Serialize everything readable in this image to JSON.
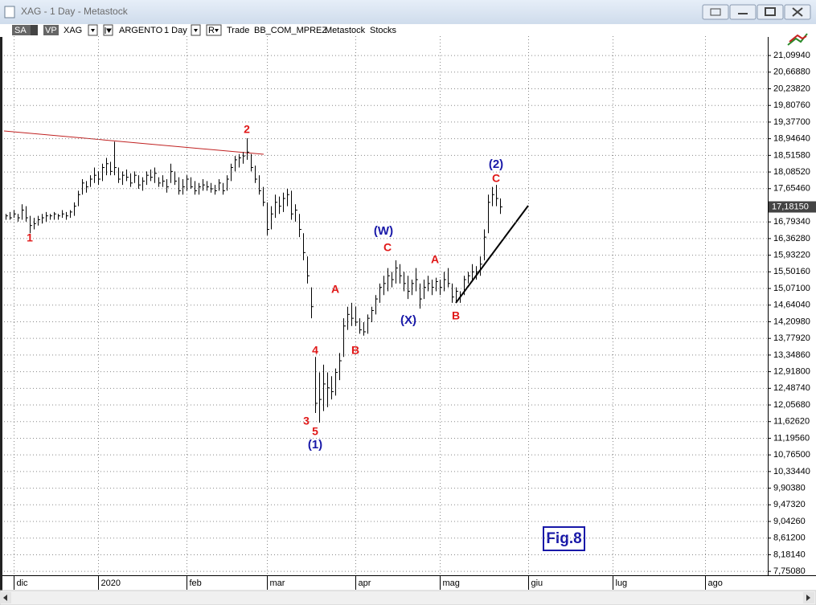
{
  "window": {
    "title": "XAG - 1 Day - Metastock"
  },
  "toolbar": [
    "SA",
    "VP",
    "XAG",
    "ARGENTO",
    "1 Day",
    "R",
    "Trade",
    "BB_COM_MPREZ",
    "Metastock",
    "Stocks"
  ],
  "chart_data": {
    "type": "ohlc",
    "categories": [
      null,
      null,
      "dic",
      null,
      null,
      null,
      null,
      null,
      null,
      null,
      null,
      null,
      null,
      null,
      null,
      null,
      null,
      null,
      null,
      null,
      null,
      null,
      null,
      "2020",
      null,
      null,
      null,
      null,
      null,
      null,
      null,
      null,
      null,
      null,
      null,
      null,
      null,
      null,
      null,
      null,
      null,
      null,
      null,
      null,
      null,
      "feb",
      null,
      null,
      null,
      null,
      null,
      null,
      null,
      null,
      null,
      null,
      null,
      null,
      null,
      null,
      null,
      null,
      null,
      null,
      null,
      "mar",
      null,
      null,
      null,
      null,
      null,
      null,
      null,
      null,
      null,
      null,
      null,
      null,
      null,
      null,
      null,
      null,
      null,
      null,
      null,
      null,
      null,
      "apr",
      null,
      null,
      null,
      null,
      null,
      null,
      null,
      null,
      null,
      null,
      null,
      null,
      null,
      null,
      null,
      null,
      null,
      null,
      null,
      null,
      "mag",
      null,
      null,
      null,
      null,
      null,
      null,
      null,
      null,
      null,
      null,
      null,
      null,
      null,
      null,
      null,
      null,
      null,
      null,
      null,
      null,
      null,
      "giu",
      null,
      null,
      null,
      null,
      null,
      null,
      null,
      null,
      null,
      null,
      null,
      null,
      null,
      null,
      null,
      null,
      null,
      null,
      null,
      null,
      "lug",
      null,
      null,
      null,
      null,
      null,
      null,
      null,
      null,
      null,
      null,
      null,
      null,
      null,
      null,
      null,
      null,
      null,
      null,
      null,
      null,
      null,
      null,
      "ago",
      null,
      null,
      null,
      null,
      null,
      null,
      null,
      null,
      null,
      null,
      null,
      null,
      null,
      null,
      null
    ],
    "series": [
      {
        "color": "#000000",
        "high": [
          17.0,
          17.05,
          17.1,
          17.0,
          17.25,
          17.2,
          16.95,
          16.9,
          16.95,
          17.0,
          17.05,
          17.0,
          17.05,
          17.0,
          17.1,
          17.05,
          17.1,
          17.3,
          17.6,
          17.9,
          17.85,
          18.0,
          18.2,
          18.1,
          18.3,
          18.45,
          18.35,
          18.87,
          18.2,
          18.1,
          18.15,
          18.05,
          18.1,
          18.0,
          17.95,
          18.1,
          18.15,
          18.2,
          17.95,
          18.0,
          17.9,
          18.3,
          18.1,
          17.95,
          17.9,
          18.0,
          17.95,
          17.85,
          17.8,
          17.9,
          17.85,
          17.8,
          17.75,
          17.9,
          17.8,
          18.0,
          18.3,
          18.5,
          18.55,
          18.6,
          18.96,
          18.55,
          18.25,
          18.0,
          17.7,
          17.3,
          17.2,
          17.5,
          17.45,
          17.55,
          17.65,
          17.6,
          17.25,
          17.0,
          16.5,
          15.9,
          15.1,
          13.3,
          12.9,
          13.1,
          12.9,
          12.8,
          13.0,
          13.4,
          14.3,
          14.6,
          14.7,
          14.6,
          14.3,
          14.2,
          14.4,
          14.6,
          14.9,
          15.2,
          15.4,
          15.6,
          15.5,
          15.8,
          15.7,
          15.5,
          15.4,
          15.3,
          15.6,
          15.2,
          15.3,
          15.4,
          15.3,
          15.35,
          15.3,
          15.5,
          15.6,
          15.2,
          15.1,
          15.0,
          15.4,
          15.5,
          15.7,
          15.65,
          15.9,
          16.6,
          17.5,
          17.7,
          17.75,
          17.4,
          null,
          null,
          null,
          null,
          null,
          null,
          null,
          null,
          null,
          null,
          null,
          null,
          null,
          null,
          null,
          null,
          null,
          null,
          null,
          null,
          null,
          null,
          null,
          null,
          null,
          null,
          null,
          null,
          null,
          null,
          null,
          null,
          null,
          null,
          null,
          null,
          null,
          null,
          null,
          null,
          null,
          null,
          null,
          null,
          null,
          null,
          null,
          null,
          null,
          null,
          null,
          null,
          null,
          null,
          null,
          null,
          null,
          null,
          null,
          null,
          null,
          null,
          null,
          null,
          null,
          null
        ],
        "low": [
          16.85,
          16.85,
          16.9,
          16.8,
          16.85,
          16.8,
          16.5,
          16.6,
          16.7,
          16.75,
          16.8,
          16.85,
          16.85,
          16.85,
          16.9,
          16.85,
          16.9,
          16.95,
          17.2,
          17.5,
          17.55,
          17.7,
          17.8,
          17.75,
          17.85,
          18.0,
          18.0,
          18.0,
          17.8,
          17.75,
          17.85,
          17.7,
          17.8,
          17.65,
          17.6,
          17.75,
          17.85,
          17.8,
          17.7,
          17.7,
          17.55,
          17.8,
          17.75,
          17.5,
          17.5,
          17.6,
          17.65,
          17.5,
          17.5,
          17.6,
          17.6,
          17.55,
          17.5,
          17.6,
          17.5,
          17.6,
          17.85,
          18.1,
          18.2,
          18.3,
          18.4,
          18.1,
          17.8,
          17.5,
          17.2,
          16.45,
          16.6,
          16.9,
          17.0,
          17.05,
          17.2,
          16.85,
          16.8,
          16.4,
          15.8,
          15.2,
          14.3,
          11.85,
          11.6,
          11.9,
          12.0,
          12.2,
          12.3,
          12.7,
          13.3,
          14.0,
          14.1,
          14.1,
          13.9,
          13.85,
          13.9,
          14.2,
          14.4,
          14.7,
          14.9,
          15.0,
          15.1,
          15.2,
          15.2,
          15.0,
          14.8,
          14.9,
          15.0,
          14.55,
          14.8,
          15.0,
          14.9,
          15.0,
          14.9,
          15.0,
          15.1,
          14.7,
          14.7,
          14.7,
          14.9,
          15.2,
          15.3,
          15.3,
          15.4,
          15.8,
          16.5,
          17.2,
          17.2,
          17.0,
          null,
          null,
          null,
          null,
          null,
          null,
          null,
          null,
          null,
          null,
          null,
          null,
          null,
          null,
          null,
          null,
          null,
          null,
          null,
          null,
          null,
          null,
          null,
          null,
          null,
          null,
          null,
          null,
          null,
          null,
          null,
          null,
          null,
          null,
          null,
          null,
          null,
          null,
          null,
          null,
          null,
          null,
          null,
          null,
          null,
          null,
          null,
          null,
          null,
          null,
          null,
          null,
          null,
          null,
          null,
          null,
          null,
          null,
          null,
          null,
          null,
          null,
          null,
          null,
          null,
          null
        ],
        "close": [
          16.95,
          16.9,
          17.0,
          16.9,
          17.1,
          16.9,
          16.7,
          16.75,
          16.85,
          16.9,
          16.95,
          16.95,
          17.0,
          16.95,
          17.0,
          16.95,
          17.05,
          17.2,
          17.5,
          17.8,
          17.7,
          17.9,
          18.0,
          17.9,
          18.2,
          18.3,
          18.1,
          18.2,
          17.9,
          18.0,
          17.95,
          17.8,
          18.0,
          17.75,
          17.85,
          18.0,
          17.95,
          18.05,
          17.8,
          17.85,
          17.7,
          18.1,
          17.85,
          17.6,
          17.7,
          17.9,
          17.7,
          17.6,
          17.7,
          17.75,
          17.7,
          17.65,
          17.6,
          17.8,
          17.6,
          17.9,
          18.2,
          18.4,
          18.45,
          18.5,
          18.6,
          18.2,
          17.9,
          17.6,
          17.3,
          16.6,
          17.0,
          17.3,
          17.2,
          17.4,
          17.5,
          17.0,
          17.1,
          16.6,
          16.0,
          15.4,
          14.6,
          12.1,
          12.2,
          12.6,
          12.5,
          12.4,
          12.9,
          13.2,
          14.1,
          14.4,
          14.3,
          14.2,
          14.0,
          13.95,
          14.3,
          14.5,
          14.8,
          15.1,
          15.2,
          15.4,
          15.3,
          15.6,
          15.4,
          15.2,
          15.0,
          15.2,
          15.3,
          14.8,
          15.1,
          15.2,
          15.1,
          15.25,
          15.1,
          15.3,
          15.2,
          14.85,
          15.0,
          14.9,
          15.3,
          15.4,
          15.5,
          15.5,
          15.7,
          16.4,
          17.3,
          17.5,
          17.4,
          17.1815,
          null,
          null,
          null,
          null,
          null,
          null,
          null,
          null,
          null,
          null,
          null,
          null,
          null,
          null,
          null,
          null,
          null,
          null,
          null,
          null,
          null,
          null,
          null,
          null,
          null,
          null,
          null,
          null,
          null,
          null,
          null,
          null,
          null,
          null,
          null,
          null,
          null,
          null,
          null,
          null,
          null,
          null,
          null,
          null,
          null,
          null,
          null,
          null,
          null,
          null,
          null,
          null,
          null,
          null,
          null,
          null,
          null,
          null,
          null,
          null,
          null,
          null,
          null,
          null,
          null,
          null
        ]
      }
    ],
    "last_price": {
      "value": 17.1815,
      "label": "17,18150"
    },
    "ylim": [
      7.65,
      21.6
    ],
    "yticks": [
      {
        "value": 21.0994,
        "label": "21,09940"
      },
      {
        "value": 20.6688,
        "label": "20,66880"
      },
      {
        "value": 20.2382,
        "label": "20,23820"
      },
      {
        "value": 19.8076,
        "label": "19,80760"
      },
      {
        "value": 19.377,
        "label": "19,37700"
      },
      {
        "value": 18.9464,
        "label": "18,94640"
      },
      {
        "value": 18.5158,
        "label": "18,51580"
      },
      {
        "value": 18.0852,
        "label": "18,08520"
      },
      {
        "value": 17.6546,
        "label": "17,65460"
      },
      {
        "value": 16.7934,
        "label": "16,79340"
      },
      {
        "value": 16.3628,
        "label": "16,36280"
      },
      {
        "value": 15.9322,
        "label": "15,93220"
      },
      {
        "value": 15.5016,
        "label": "15,50160"
      },
      {
        "value": 15.071,
        "label": "15,07100"
      },
      {
        "value": 14.6404,
        "label": "14,64040"
      },
      {
        "value": 14.2098,
        "label": "14,20980"
      },
      {
        "value": 13.7792,
        "label": "13,77920"
      },
      {
        "value": 13.3486,
        "label": "13,34860"
      },
      {
        "value": 12.918,
        "label": "12,91800"
      },
      {
        "value": 12.4874,
        "label": "12,48740"
      },
      {
        "value": 12.0568,
        "label": "12,05680"
      },
      {
        "value": 11.6262,
        "label": "11,62620"
      },
      {
        "value": 11.1956,
        "label": "11,19560"
      },
      {
        "value": 10.765,
        "label": "10,76500"
      },
      {
        "value": 10.3344,
        "label": "10,33440"
      },
      {
        "value": 9.9038,
        "label": "9,90380"
      },
      {
        "value": 9.4732,
        "label": "9,47320"
      },
      {
        "value": 9.0426,
        "label": "9,04260"
      },
      {
        "value": 8.612,
        "label": "8,61200"
      },
      {
        "value": 8.1814,
        "label": "8,18140"
      },
      {
        "value": 7.7508,
        "label": "7,75080"
      }
    ],
    "grid": true,
    "annotations": [
      {
        "text": "1",
        "color": "#e01818"
      },
      {
        "text": "2",
        "color": "#e01818"
      },
      {
        "text": "3",
        "color": "#e01818"
      },
      {
        "text": "4",
        "color": "#e01818"
      },
      {
        "text": "5",
        "color": "#e01818"
      },
      {
        "text": "(1)",
        "color": "#1818a8"
      },
      {
        "text": "A",
        "color": "#e01818"
      },
      {
        "text": "B",
        "color": "#e01818"
      },
      {
        "text": "(W)",
        "color": "#1818a8"
      },
      {
        "text": "C",
        "color": "#e01818"
      },
      {
        "text": "(X)",
        "color": "#1818a8"
      },
      {
        "text": "A",
        "color": "#e01818"
      },
      {
        "text": "B",
        "color": "#e01818"
      },
      {
        "text": "(2)",
        "color": "#1818a8"
      },
      {
        "text": "C",
        "color": "#e01818"
      }
    ],
    "figure_label": "Fig.8"
  }
}
